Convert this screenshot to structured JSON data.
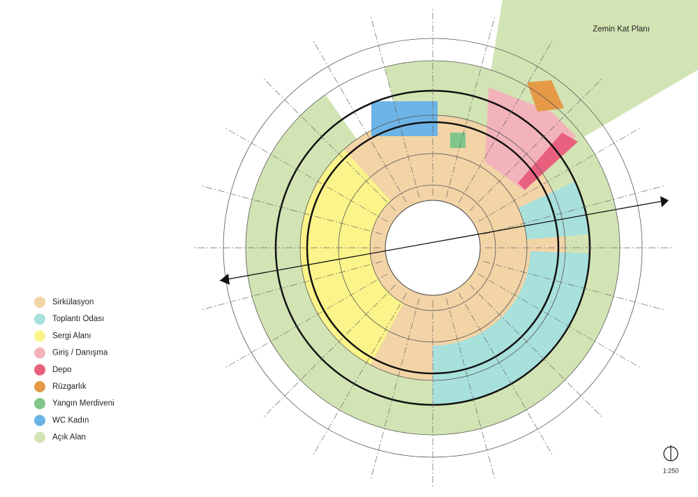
{
  "header": {
    "title": "Zemin Kat Planı"
  },
  "legend": {
    "items": [
      {
        "label": "Sirkülasyon",
        "color": "#f2d4a6"
      },
      {
        "label": "Toplantı Odası",
        "color": "#a8e0dc"
      },
      {
        "label": "Sergi Alanı",
        "color": "#faf48a"
      },
      {
        "label": "Giriş / Danışma",
        "color": "#f2b3ba"
      },
      {
        "label": "Depo",
        "color": "#e9607f"
      },
      {
        "label": "Rüzgarlık",
        "color": "#e69a48"
      },
      {
        "label": "Yangın Merdiveni",
        "color": "#80c68a"
      },
      {
        "label": "WC Kadın",
        "color": "#6cb4e6"
      },
      {
        "label": "Açık Alan",
        "color": "#d3e4b4"
      }
    ]
  },
  "scale": {
    "label": "1:250"
  }
}
